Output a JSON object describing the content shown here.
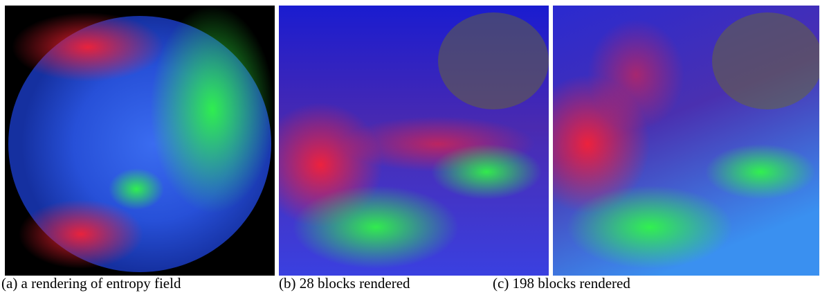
{
  "figure": {
    "panels": [
      {
        "caption": "(a) a rendering of entropy field"
      },
      {
        "caption": "(b) 28 blocks rendered"
      },
      {
        "caption": "(c) 198 blocks rendered"
      }
    ]
  }
}
